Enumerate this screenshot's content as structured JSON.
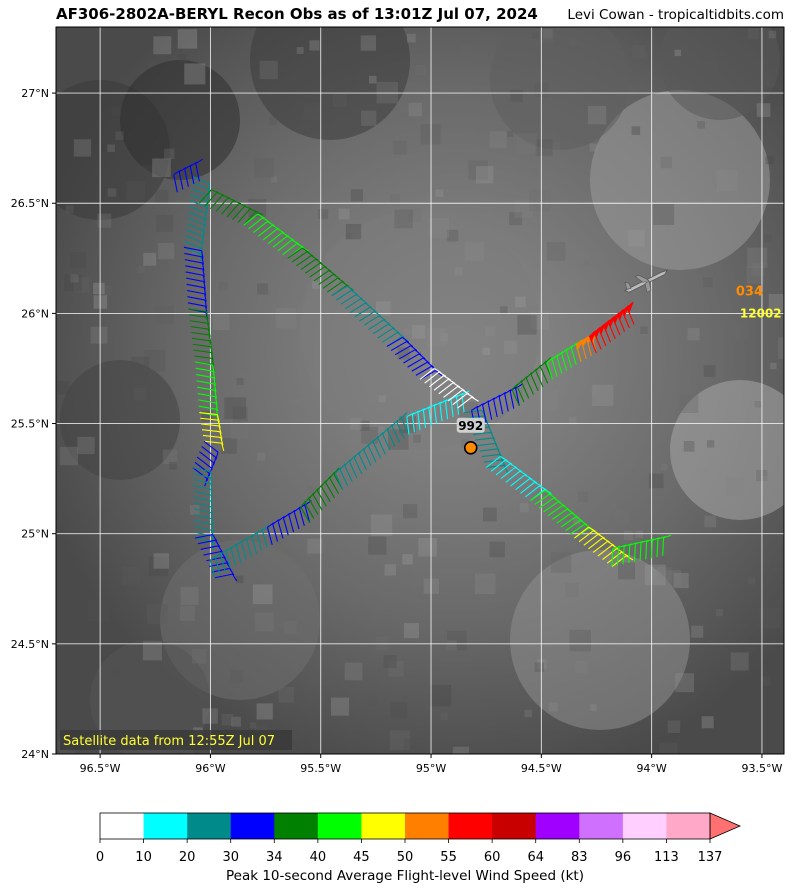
{
  "header": {
    "title": "AF306-2802A-BERYL Recon Obs as of 13:01Z Jul 07, 2024",
    "credit": "Levi Cowan - tropicaltidbits.com"
  },
  "map": {
    "lon_range": [
      -96.7,
      -93.4
    ],
    "lat_range": [
      24.0,
      27.3
    ],
    "lon_ticks": [
      {
        "value": -96.5,
        "label": "96.5°W"
      },
      {
        "value": -96.0,
        "label": "96°W"
      },
      {
        "value": -95.5,
        "label": "95.5°W"
      },
      {
        "value": -95.0,
        "label": "95°W"
      },
      {
        "value": -94.5,
        "label": "94.5°W"
      },
      {
        "value": -94.0,
        "label": "94°W"
      },
      {
        "value": -93.5,
        "label": "93.5°W"
      }
    ],
    "lat_ticks": [
      {
        "value": 24.0,
        "label": "24°N"
      },
      {
        "value": 24.5,
        "label": "24.5°N"
      },
      {
        "value": 25.0,
        "label": "25°N"
      },
      {
        "value": 25.5,
        "label": "25.5°N"
      },
      {
        "value": 26.0,
        "label": "26°N"
      },
      {
        "value": 26.5,
        "label": "26.5°N"
      },
      {
        "value": 27.0,
        "label": "27°N"
      }
    ],
    "grid": true,
    "background": "grayscale satellite imagery",
    "satellite_note": "Satellite data from 12:55Z Jul 07",
    "center": {
      "label": "992",
      "lon": -94.82,
      "lat": 25.39,
      "color": "#ff8c00"
    },
    "aircraft": {
      "lon": -94.03,
      "lat": 26.15
    },
    "dropsonde": {
      "id": "034",
      "value": "12002",
      "lon": -93.6,
      "lat": 26.0
    }
  },
  "chart_data": {
    "type": "wind-barb flight track",
    "segments": [
      {
        "from": [
          -96.08,
          26.62
        ],
        "to": [
          -96.12,
          26.3
        ],
        "wind_kt": 25
      },
      {
        "from": [
          -96.12,
          26.3
        ],
        "to": [
          -96.1,
          26.02
        ],
        "wind_kt": 32
      },
      {
        "from": [
          -96.1,
          26.02
        ],
        "to": [
          -96.07,
          25.78
        ],
        "wind_kt": 36
      },
      {
        "from": [
          -96.07,
          25.78
        ],
        "to": [
          -96.05,
          25.55
        ],
        "wind_kt": 42
      },
      {
        "from": [
          -96.05,
          25.55
        ],
        "to": [
          -96.03,
          25.42
        ],
        "wind_kt": 47
      },
      {
        "from": [
          -96.03,
          25.42
        ],
        "to": [
          -96.08,
          25.3
        ],
        "wind_kt": 32
      },
      {
        "from": [
          -96.08,
          25.3
        ],
        "to": [
          -96.07,
          24.98
        ],
        "wind_kt": 25
      },
      {
        "from": [
          -96.07,
          24.98
        ],
        "to": [
          -95.98,
          24.8
        ],
        "wind_kt": 30
      },
      {
        "from": [
          -95.98,
          24.8
        ],
        "to": [
          -95.72,
          24.95
        ],
        "wind_kt": 24
      },
      {
        "from": [
          -95.72,
          24.95
        ],
        "to": [
          -95.55,
          25.05
        ],
        "wind_kt": 32
      },
      {
        "from": [
          -95.55,
          25.05
        ],
        "to": [
          -95.4,
          25.2
        ],
        "wind_kt": 36
      },
      {
        "from": [
          -95.4,
          25.2
        ],
        "to": [
          -95.1,
          25.45
        ],
        "wind_kt": 24
      },
      {
        "from": [
          -95.1,
          25.45
        ],
        "to": [
          -94.85,
          25.55
        ],
        "wind_kt": 15
      },
      {
        "from": [
          -94.85,
          25.55
        ],
        "to": [
          -94.75,
          25.3
        ],
        "wind_kt": 22
      },
      {
        "from": [
          -94.75,
          25.3
        ],
        "to": [
          -94.55,
          25.15
        ],
        "wind_kt": 12
      },
      {
        "from": [
          -94.55,
          25.15
        ],
        "to": [
          -94.35,
          24.98
        ],
        "wind_kt": 42
      },
      {
        "from": [
          -94.35,
          24.98
        ],
        "to": [
          -94.18,
          24.85
        ],
        "wind_kt": 47
      },
      {
        "from": [
          -94.18,
          24.85
        ],
        "to": [
          -93.95,
          24.9
        ],
        "wind_kt": 43
      },
      {
        "from": [
          -96.15,
          26.55
        ],
        "to": [
          -96.05,
          26.6
        ],
        "wind_kt": 30
      },
      {
        "from": [
          -96.05,
          26.5
        ],
        "to": [
          -95.85,
          26.4
        ],
        "wind_kt": 36
      },
      {
        "from": [
          -95.85,
          26.4
        ],
        "to": [
          -95.65,
          26.25
        ],
        "wind_kt": 42
      },
      {
        "from": [
          -95.65,
          26.25
        ],
        "to": [
          -95.45,
          26.08
        ],
        "wind_kt": 38
      },
      {
        "from": [
          -95.45,
          26.08
        ],
        "to": [
          -95.2,
          25.85
        ],
        "wind_kt": 28
      },
      {
        "from": [
          -95.2,
          25.85
        ],
        "to": [
          -95.05,
          25.7
        ],
        "wind_kt": 32
      },
      {
        "from": [
          -95.05,
          25.7
        ],
        "to": [
          -94.88,
          25.57
        ],
        "wind_kt": 5
      },
      {
        "from": [
          -94.8,
          25.48
        ],
        "to": [
          -94.6,
          25.58
        ],
        "wind_kt": 30
      },
      {
        "from": [
          -94.6,
          25.58
        ],
        "to": [
          -94.45,
          25.7
        ],
        "wind_kt": 36
      },
      {
        "from": [
          -94.45,
          25.7
        ],
        "to": [
          -94.32,
          25.78
        ],
        "wind_kt": 42
      },
      {
        "from": [
          -94.32,
          25.78
        ],
        "to": [
          -94.25,
          25.82
        ],
        "wind_kt": 52
      },
      {
        "from": [
          -94.25,
          25.82
        ],
        "to": [
          -94.08,
          25.95
        ],
        "wind_kt": 57
      }
    ]
  },
  "colorbar": {
    "label": "Peak 10-second Average Flight-level Wind Speed (kt)",
    "ticks": [
      "0",
      "10",
      "20",
      "30",
      "34",
      "40",
      "45",
      "50",
      "55",
      "60",
      "64",
      "83",
      "96",
      "113",
      "137"
    ],
    "colors": [
      "#ffffff",
      "#00ffff",
      "#008b8b",
      "#0000ff",
      "#008000",
      "#00ff00",
      "#ffff00",
      "#ff7f00",
      "#ff0000",
      "#c80000",
      "#a000ff",
      "#d070ff",
      "#ffd0ff",
      "#ffa8c8"
    ],
    "extend_color": "#ff7070"
  }
}
